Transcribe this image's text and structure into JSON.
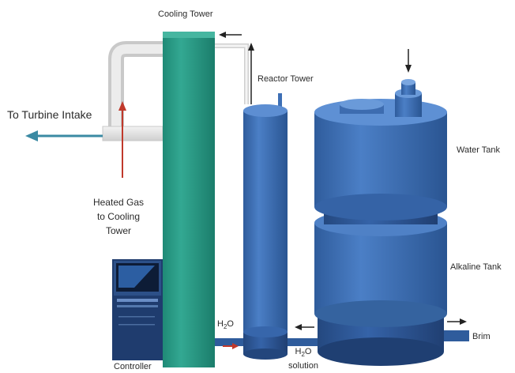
{
  "labels": {
    "cooling_tower": "Cooling Tower",
    "reactor_tower": "Reactor Tower",
    "to_turbine_intake": "To Turbine Intake",
    "water_tank": "Water Tank",
    "heated_gas": [
      "Heated Gas",
      "to Cooling",
      "Tower"
    ],
    "alkaline_tank": "Alkaline Tank",
    "h2o_left": "H",
    "h2o_left_sub": "2",
    "h2o_left_tail": "O",
    "h2o_solution": [
      "H",
      "2",
      "O",
      "solution"
    ],
    "brim": "Brim",
    "controller": "Controller"
  },
  "colors": {
    "cooling_tower": "#2a9a86",
    "reactor": "#3d6fb5",
    "tank": "#3a6aac",
    "pipe": "#e6e6e6",
    "turbine_arrow": "#3b8aa3",
    "flow_arrow": "#c0392b"
  }
}
